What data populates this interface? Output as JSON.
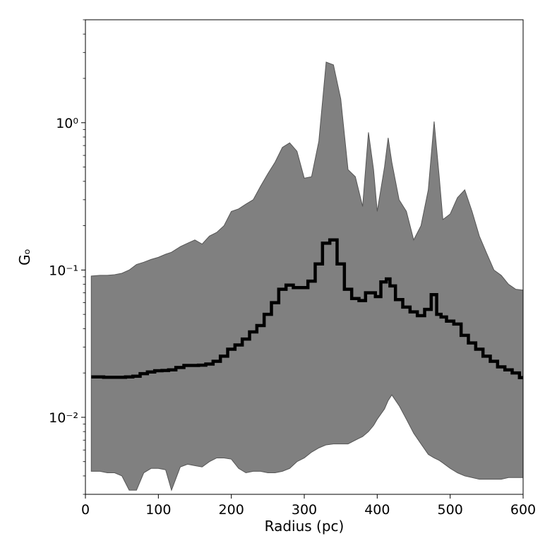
{
  "chart_data": {
    "type": "band_line",
    "xlabel": "Radius (pc)",
    "ylabel": "Gₒ",
    "xlim": [
      0,
      600
    ],
    "xticks": [
      0,
      100,
      200,
      300,
      400,
      500,
      600
    ],
    "ylim": [
      0.003,
      5
    ],
    "yscale": "log",
    "yticks": [
      {
        "value": 0.01,
        "label": "10⁻²"
      },
      {
        "value": 0.1,
        "label": "10⁻¹"
      },
      {
        "value": 1,
        "label": "10⁰"
      }
    ],
    "yminorticks": [
      0.003,
      0.004,
      0.005,
      0.006,
      0.007,
      0.008,
      0.009,
      0.02,
      0.03,
      0.04,
      0.05,
      0.06,
      0.07,
      0.08,
      0.09,
      0.2,
      0.3,
      0.4,
      0.5,
      0.6,
      0.7,
      0.8,
      0.9,
      2,
      3,
      4,
      5
    ],
    "x": [
      8,
      20,
      30,
      40,
      50,
      60,
      70,
      80,
      90,
      100,
      110,
      118,
      130,
      140,
      150,
      160,
      170,
      180,
      190,
      200,
      210,
      220,
      230,
      240,
      250,
      260,
      270,
      280,
      290,
      300,
      310,
      320,
      330,
      340,
      350,
      360,
      370,
      380,
      388,
      395,
      400,
      410,
      415,
      420,
      430,
      440,
      450,
      460,
      470,
      478,
      485,
      490,
      500,
      510,
      520,
      530,
      540,
      550,
      560,
      570,
      580,
      590,
      600
    ],
    "band": {
      "color": "#808080",
      "upper": [
        0.091,
        0.092,
        0.092,
        0.093,
        0.095,
        0.1,
        0.109,
        0.113,
        0.118,
        0.122,
        0.128,
        0.132,
        0.144,
        0.152,
        0.16,
        0.15,
        0.17,
        0.18,
        0.2,
        0.25,
        0.26,
        0.28,
        0.3,
        0.37,
        0.45,
        0.54,
        0.68,
        0.73,
        0.64,
        0.42,
        0.43,
        0.75,
        2.58,
        2.47,
        1.45,
        0.48,
        0.43,
        0.27,
        0.86,
        0.48,
        0.25,
        0.5,
        0.79,
        0.54,
        0.3,
        0.25,
        0.16,
        0.2,
        0.35,
        1.02,
        0.43,
        0.22,
        0.24,
        0.31,
        0.35,
        0.25,
        0.17,
        0.13,
        0.1,
        0.092,
        0.08,
        0.074,
        0.073
      ],
      "lower": [
        0.0043,
        0.0043,
        0.0042,
        0.0042,
        0.004,
        0.0032,
        0.0032,
        0.0042,
        0.0045,
        0.0045,
        0.0044,
        0.0032,
        0.0046,
        0.0048,
        0.0047,
        0.0046,
        0.005,
        0.0053,
        0.0053,
        0.0052,
        0.0045,
        0.0042,
        0.0043,
        0.0043,
        0.0042,
        0.0042,
        0.0043,
        0.0045,
        0.005,
        0.0053,
        0.0058,
        0.0062,
        0.0065,
        0.0066,
        0.0066,
        0.0066,
        0.007,
        0.0074,
        0.008,
        0.0088,
        0.0097,
        0.0114,
        0.013,
        0.0142,
        0.012,
        0.0097,
        0.0078,
        0.0066,
        0.0056,
        0.0053,
        0.0051,
        0.0049,
        0.0045,
        0.0042,
        0.004,
        0.0039,
        0.0038,
        0.0038,
        0.0038,
        0.0038,
        0.0039,
        0.0039,
        0.0039
      ]
    },
    "line": {
      "color": "#000000",
      "drawstyle": "steps-mid",
      "values": [
        0.0188,
        0.0188,
        0.0187,
        0.0187,
        0.0187,
        0.0188,
        0.019,
        0.0198,
        0.0203,
        0.0207,
        0.0208,
        0.021,
        0.0218,
        0.0225,
        0.0225,
        0.0226,
        0.023,
        0.024,
        0.026,
        0.029,
        0.031,
        0.034,
        0.038,
        0.042,
        0.05,
        0.06,
        0.074,
        0.079,
        0.076,
        0.076,
        0.084,
        0.11,
        0.152,
        0.16,
        0.11,
        0.074,
        0.064,
        0.062,
        0.07,
        0.07,
        0.066,
        0.083,
        0.087,
        0.078,
        0.063,
        0.056,
        0.052,
        0.049,
        0.054,
        0.068,
        0.05,
        0.048,
        0.045,
        0.043,
        0.036,
        0.032,
        0.029,
        0.026,
        0.024,
        0.022,
        0.021,
        0.02,
        0.0186
      ]
    }
  }
}
